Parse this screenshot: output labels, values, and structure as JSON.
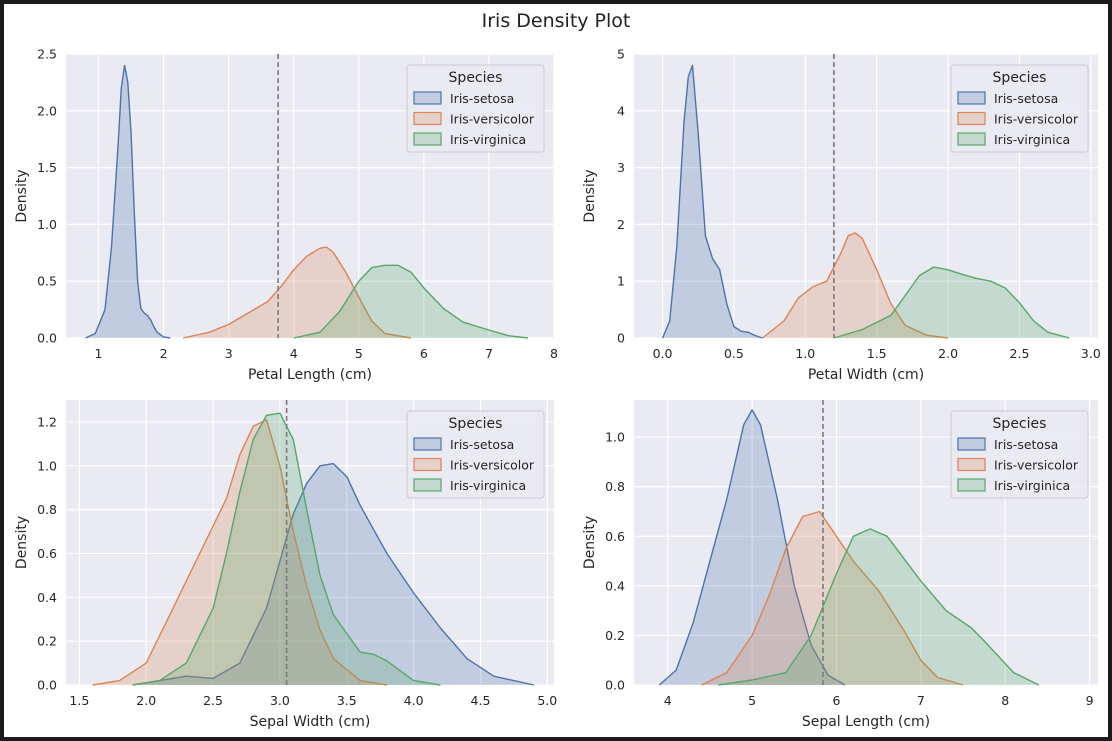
{
  "figure": {
    "title": "Iris Density Plot"
  },
  "colors": {
    "Iris-setosa": "#4c72b0",
    "Iris-versicolor": "#dd8452",
    "Iris-virginica": "#55a868",
    "axes_background": "#eaeaf2",
    "grid": "#ffffff",
    "reference_line": "#7a7a7a"
  },
  "chart_data": [
    {
      "type": "area",
      "title": "",
      "xlabel": "Petal Length (cm)",
      "ylabel": "Density",
      "xlim": [
        0.5,
        8
      ],
      "ylim": [
        0,
        2.5
      ],
      "xticks": [
        1,
        2,
        3,
        4,
        5,
        6,
        7,
        8
      ],
      "yticks": [
        0.0,
        0.5,
        1.0,
        1.5,
        2.0,
        2.5
      ],
      "xtick_labels": [
        "1",
        "2",
        "3",
        "4",
        "5",
        "6",
        "7",
        "8"
      ],
      "ytick_labels": [
        "0.0",
        "0.5",
        "1.0",
        "1.5",
        "2.0",
        "2.5"
      ],
      "vline": 3.76,
      "grid": true,
      "legend": {
        "title": "Species",
        "placement": "top-right"
      },
      "series": [
        {
          "name": "Iris-setosa",
          "x": [
            0.8,
            0.95,
            1.1,
            1.2,
            1.3,
            1.35,
            1.4,
            1.45,
            1.5,
            1.55,
            1.6,
            1.65,
            1.7,
            1.75,
            1.8,
            1.85,
            1.9,
            2.0,
            2.1
          ],
          "y": [
            0.0,
            0.04,
            0.25,
            0.8,
            1.7,
            2.2,
            2.4,
            2.25,
            1.8,
            1.1,
            0.5,
            0.26,
            0.22,
            0.2,
            0.16,
            0.1,
            0.05,
            0.01,
            0.0
          ]
        },
        {
          "name": "Iris-versicolor",
          "x": [
            2.3,
            2.7,
            3.0,
            3.3,
            3.6,
            3.8,
            4.0,
            4.2,
            4.4,
            4.5,
            4.6,
            4.8,
            5.0,
            5.2,
            5.4,
            5.8
          ],
          "y": [
            0.0,
            0.05,
            0.12,
            0.22,
            0.32,
            0.45,
            0.6,
            0.72,
            0.79,
            0.8,
            0.76,
            0.58,
            0.36,
            0.15,
            0.04,
            0.0
          ]
        },
        {
          "name": "Iris-virginica",
          "x": [
            4.0,
            4.4,
            4.7,
            5.0,
            5.2,
            5.4,
            5.6,
            5.8,
            6.0,
            6.3,
            6.6,
            7.0,
            7.3,
            7.6
          ],
          "y": [
            0.0,
            0.05,
            0.23,
            0.5,
            0.62,
            0.64,
            0.64,
            0.58,
            0.44,
            0.26,
            0.14,
            0.07,
            0.02,
            0.0
          ]
        }
      ]
    },
    {
      "type": "area",
      "title": "",
      "xlabel": "Petal Width (cm)",
      "ylabel": "Density",
      "xlim": [
        -0.2,
        3.05
      ],
      "ylim": [
        0,
        5
      ],
      "xticks": [
        0.0,
        0.5,
        1.0,
        1.5,
        2.0,
        2.5,
        3.0
      ],
      "yticks": [
        0,
        1,
        2,
        3,
        4,
        5
      ],
      "xtick_labels": [
        "0.0",
        "0.5",
        "1.0",
        "1.5",
        "2.0",
        "2.5",
        "3.0"
      ],
      "ytick_labels": [
        "0",
        "1",
        "2",
        "3",
        "4",
        "5"
      ],
      "vline": 1.2,
      "grid": true,
      "legend": {
        "title": "Species",
        "placement": "top-right"
      },
      "series": [
        {
          "name": "Iris-setosa",
          "x": [
            0.0,
            0.05,
            0.1,
            0.15,
            0.18,
            0.21,
            0.25,
            0.3,
            0.35,
            0.4,
            0.45,
            0.5,
            0.55,
            0.6,
            0.65,
            0.7
          ],
          "y": [
            0.0,
            0.3,
            1.6,
            3.8,
            4.6,
            4.8,
            3.6,
            1.8,
            1.4,
            1.2,
            0.6,
            0.2,
            0.12,
            0.1,
            0.04,
            0.0
          ]
        },
        {
          "name": "Iris-versicolor",
          "x": [
            0.7,
            0.85,
            0.95,
            1.05,
            1.15,
            1.25,
            1.3,
            1.35,
            1.4,
            1.5,
            1.6,
            1.7,
            1.85,
            2.0
          ],
          "y": [
            0.0,
            0.3,
            0.7,
            0.9,
            1.0,
            1.5,
            1.8,
            1.85,
            1.75,
            1.2,
            0.6,
            0.22,
            0.05,
            0.0
          ]
        },
        {
          "name": "Iris-virginica",
          "x": [
            1.2,
            1.4,
            1.6,
            1.7,
            1.8,
            1.9,
            2.0,
            2.1,
            2.2,
            2.3,
            2.4,
            2.5,
            2.6,
            2.7,
            2.85
          ],
          "y": [
            0.0,
            0.15,
            0.4,
            0.75,
            1.1,
            1.25,
            1.2,
            1.12,
            1.05,
            1.0,
            0.88,
            0.62,
            0.3,
            0.1,
            0.0
          ]
        }
      ]
    },
    {
      "type": "area",
      "title": "",
      "xlabel": "Sepal Width (cm)",
      "ylabel": "Density",
      "xlim": [
        1.4,
        5.05
      ],
      "ylim": [
        0,
        1.3
      ],
      "xticks": [
        1.5,
        2.0,
        2.5,
        3.0,
        3.5,
        4.0,
        4.5,
        5.0
      ],
      "yticks": [
        0.0,
        0.2,
        0.4,
        0.6,
        0.8,
        1.0,
        1.2
      ],
      "xtick_labels": [
        "1.5",
        "2.0",
        "2.5",
        "3.0",
        "3.5",
        "4.0",
        "4.5",
        "5.0"
      ],
      "ytick_labels": [
        "0.0",
        "0.2",
        "0.4",
        "0.6",
        "0.8",
        "1.0",
        "1.2"
      ],
      "vline": 3.05,
      "grid": true,
      "legend": {
        "title": "Species",
        "placement": "top-right"
      },
      "series": [
        {
          "name": "Iris-setosa",
          "x": [
            1.9,
            2.1,
            2.3,
            2.5,
            2.7,
            2.9,
            3.1,
            3.2,
            3.3,
            3.4,
            3.5,
            3.6,
            3.8,
            4.0,
            4.2,
            4.4,
            4.6,
            4.9
          ],
          "y": [
            0.0,
            0.02,
            0.04,
            0.03,
            0.1,
            0.35,
            0.78,
            0.92,
            1.0,
            1.01,
            0.95,
            0.82,
            0.6,
            0.42,
            0.26,
            0.12,
            0.04,
            0.0
          ]
        },
        {
          "name": "Iris-versicolor",
          "x": [
            1.6,
            1.8,
            2.0,
            2.2,
            2.4,
            2.6,
            2.7,
            2.8,
            2.9,
            3.0,
            3.1,
            3.2,
            3.3,
            3.4,
            3.6,
            3.8
          ],
          "y": [
            0.0,
            0.02,
            0.1,
            0.35,
            0.6,
            0.85,
            1.05,
            1.18,
            1.21,
            1.0,
            0.7,
            0.45,
            0.25,
            0.12,
            0.02,
            0.0
          ]
        },
        {
          "name": "Iris-virginica",
          "x": [
            1.9,
            2.1,
            2.3,
            2.5,
            2.6,
            2.7,
            2.8,
            2.9,
            3.0,
            3.1,
            3.2,
            3.3,
            3.4,
            3.6,
            3.7,
            3.8,
            4.0,
            4.2
          ],
          "y": [
            0.0,
            0.02,
            0.1,
            0.35,
            0.6,
            0.88,
            1.12,
            1.23,
            1.24,
            1.12,
            0.8,
            0.5,
            0.32,
            0.15,
            0.14,
            0.11,
            0.02,
            0.0
          ]
        }
      ]
    },
    {
      "type": "area",
      "title": "",
      "xlabel": "Sepal Length (cm)",
      "ylabel": "Density",
      "xlim": [
        3.6,
        9.1
      ],
      "ylim": [
        0,
        1.15
      ],
      "xticks": [
        4,
        5,
        6,
        7,
        8,
        9
      ],
      "yticks": [
        0.0,
        0.2,
        0.4,
        0.6,
        0.8,
        1.0
      ],
      "xtick_labels": [
        "4",
        "5",
        "6",
        "7",
        "8",
        "9"
      ],
      "ytick_labels": [
        "0.0",
        "0.2",
        "0.4",
        "0.6",
        "0.8",
        "1.0"
      ],
      "vline": 5.84,
      "grid": true,
      "legend": {
        "title": "Species",
        "placement": "top-right"
      },
      "series": [
        {
          "name": "Iris-setosa",
          "x": [
            3.9,
            4.1,
            4.3,
            4.5,
            4.7,
            4.9,
            5.0,
            5.1,
            5.3,
            5.5,
            5.7,
            5.9,
            6.1
          ],
          "y": [
            0.0,
            0.06,
            0.25,
            0.5,
            0.75,
            1.05,
            1.11,
            1.05,
            0.75,
            0.4,
            0.16,
            0.04,
            0.0
          ]
        },
        {
          "name": "Iris-versicolor",
          "x": [
            4.4,
            4.7,
            5.0,
            5.2,
            5.4,
            5.6,
            5.8,
            6.0,
            6.2,
            6.5,
            6.8,
            7.0,
            7.2,
            7.5
          ],
          "y": [
            0.0,
            0.05,
            0.2,
            0.36,
            0.55,
            0.68,
            0.7,
            0.6,
            0.5,
            0.38,
            0.22,
            0.1,
            0.03,
            0.0
          ]
        },
        {
          "name": "Iris-virginica",
          "x": [
            4.6,
            5.0,
            5.4,
            5.7,
            6.0,
            6.2,
            6.4,
            6.6,
            7.0,
            7.3,
            7.6,
            7.8,
            8.1,
            8.4
          ],
          "y": [
            0.0,
            0.02,
            0.05,
            0.2,
            0.45,
            0.6,
            0.63,
            0.6,
            0.42,
            0.3,
            0.23,
            0.16,
            0.05,
            0.0
          ]
        }
      ]
    }
  ]
}
